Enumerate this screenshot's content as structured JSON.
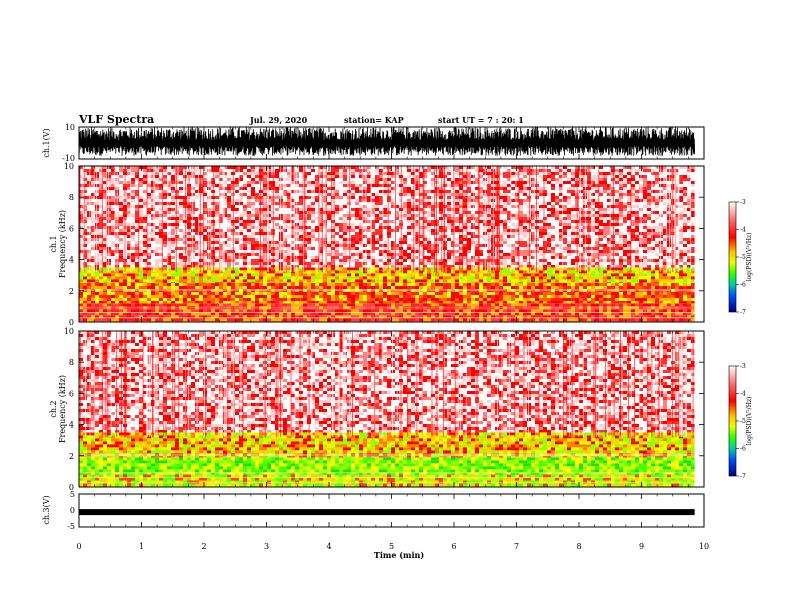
{
  "header": {
    "title": "VLF Spectra",
    "date": "Jul. 29, 2020",
    "station": "station= KAP",
    "start": "start UT =  7 : 20: 1"
  },
  "colorbar": {
    "label": "log(PSD)(V²/Hz)",
    "ticks": [
      "-3",
      "-4",
      "-5",
      "-6",
      "-7"
    ],
    "range": [
      -7,
      -3
    ]
  },
  "chart_data": [
    {
      "type": "line",
      "name": "ch1-waveform",
      "ylabel": "ch.1(V)",
      "ylim": [
        -10,
        10
      ],
      "yticks": [
        "10",
        "-10"
      ],
      "x_range_min": [
        0,
        9.85
      ],
      "description_levels": "dense noisy waveform mostly between -8 and 10 V"
    },
    {
      "type": "heatmap",
      "name": "ch1-spectrogram",
      "ylabel": "ch.1\nFrequency (kHz)",
      "ylim": [
        0,
        10
      ],
      "yticks": [
        "10",
        "8",
        "6",
        "4",
        "2",
        "0"
      ],
      "bands": [
        {
          "from_khz": 0,
          "to_khz": 1.2,
          "level": "red"
        },
        {
          "from_khz": 1.2,
          "to_khz": 2.5,
          "level": "red-yellow"
        },
        {
          "from_khz": 2.5,
          "to_khz": 3.5,
          "level": "yellow"
        },
        {
          "from_khz": 3.5,
          "to_khz": 10,
          "level": "red-white"
        }
      ]
    },
    {
      "type": "heatmap",
      "name": "ch2-spectrogram",
      "ylabel": "ch.2\nFrequency (kHz)",
      "ylim": [
        0,
        10
      ],
      "yticks": [
        "10",
        "8",
        "6",
        "4",
        "2",
        "0"
      ],
      "bands": [
        {
          "from_khz": 0,
          "to_khz": 0.8,
          "level": "yellow-green"
        },
        {
          "from_khz": 0.8,
          "to_khz": 1.9,
          "level": "green"
        },
        {
          "from_khz": 1.9,
          "to_khz": 3.5,
          "level": "yellow"
        },
        {
          "from_khz": 3.5,
          "to_khz": 10,
          "level": "red-white"
        }
      ]
    },
    {
      "type": "line",
      "name": "ch3-waveform",
      "ylabel": "ch.3(V)",
      "ylim": [
        -5,
        5
      ],
      "yticks": [
        "5",
        "0",
        "-5"
      ],
      "level_v": -0.5
    }
  ],
  "xaxis": {
    "label": "Time (min)",
    "range": [
      0,
      10
    ],
    "ticks": [
      "0",
      "1",
      "2",
      "3",
      "4",
      "5",
      "6",
      "7",
      "8",
      "9",
      "10"
    ]
  }
}
